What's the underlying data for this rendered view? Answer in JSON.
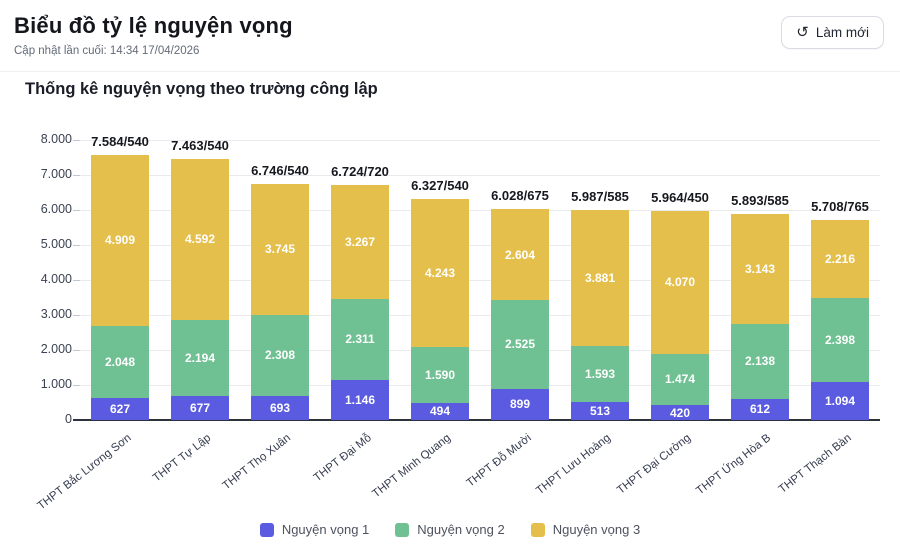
{
  "page": {
    "title": "Biểu đồ tỷ lệ nguyện vọng",
    "last_updated": "Cập nhật lần cuối: 14:34 17/04/2026",
    "refresh_button": {
      "label": "Làm mới",
      "icon": "refresh-icon",
      "glyph": "↺"
    }
  },
  "chart_data": {
    "type": "bar",
    "stacked": true,
    "title": "Thống kê nguyện vọng theo trường công lập",
    "categories": [
      "THPT Bắc Lương Sơn",
      "THPT Tự Lập",
      "THPT Thọ Xuân",
      "THPT Đại Mỗ",
      "THPT Minh Quang",
      "THPT Đỗ Mười",
      "THPT Lưu Hoàng",
      "THPT Đại Cường",
      "THPT Ứng Hòa B",
      "THPT Thạch Bàn"
    ],
    "series": [
      {
        "name": "Nguyện vọng 1",
        "color": "#5a5be0",
        "values": [
          627,
          677,
          693,
          1146,
          494,
          899,
          513,
          420,
          612,
          1094
        ]
      },
      {
        "name": "Nguyện vọng 2",
        "color": "#6fc092",
        "values": [
          2048,
          2194,
          2308,
          2311,
          1590,
          2525,
          1593,
          1474,
          2138,
          2398
        ]
      },
      {
        "name": "Nguyện vọng 3",
        "color": "#e4bf4c",
        "values": [
          4909,
          4592,
          3745,
          3267,
          4243,
          2604,
          3881,
          4070,
          3143,
          2216
        ]
      }
    ],
    "bar_total_labels": [
      "7.584/540",
      "7.463/540",
      "6.746/540",
      "6.724/720",
      "6.327/540",
      "6.028/675",
      "5.987/585",
      "5.964/450",
      "5.893/585",
      "5.708/765"
    ],
    "yticks": [
      0,
      1000,
      2000,
      3000,
      4000,
      5000,
      6000,
      7000,
      8000
    ],
    "ytick_labels": [
      "0",
      "1.000",
      "2.000",
      "3.000",
      "4.000",
      "5.000",
      "6.000",
      "7.000",
      "8.000"
    ],
    "ylim": [
      0,
      8000
    ],
    "grid": true,
    "legend_position": "bottom"
  }
}
